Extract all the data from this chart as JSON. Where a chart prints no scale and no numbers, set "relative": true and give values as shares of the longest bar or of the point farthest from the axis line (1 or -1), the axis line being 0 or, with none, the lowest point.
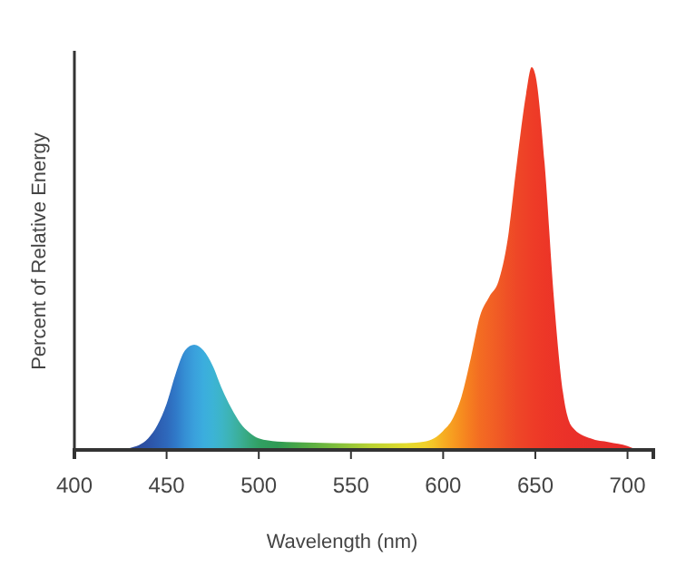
{
  "chart_data": {
    "type": "area",
    "xlabel": "Wavelength (nm)",
    "ylabel": "Percent of Relative Energy",
    "relative": true,
    "xlim": [
      400,
      714
    ],
    "xticks": [
      400,
      450,
      500,
      550,
      600,
      650,
      700
    ],
    "series": [
      {
        "x": [
          420,
          430,
          440,
          450,
          455,
          460,
          465,
          470,
          475,
          480,
          485,
          490,
          495,
          500,
          510,
          520,
          540,
          560,
          580,
          590,
          595,
          600,
          605,
          610,
          615,
          620,
          625,
          630,
          635,
          640,
          645,
          648,
          650,
          655,
          660,
          665,
          670,
          680,
          690,
          700,
          705
        ],
        "values": [
          0,
          0.005,
          0.03,
          0.12,
          0.2,
          0.26,
          0.275,
          0.26,
          0.22,
          0.16,
          0.11,
          0.07,
          0.045,
          0.03,
          0.022,
          0.02,
          0.018,
          0.017,
          0.018,
          0.022,
          0.03,
          0.05,
          0.08,
          0.14,
          0.24,
          0.35,
          0.4,
          0.44,
          0.55,
          0.75,
          0.93,
          1,
          0.98,
          0.75,
          0.4,
          0.15,
          0.06,
          0.03,
          0.02,
          0.01,
          0
        ],
        "colors": [
          "#2a3f8f",
          "#2b4796",
          "#2c52a6",
          "#2e68bb",
          "#3079c8",
          "#358fd4",
          "#3aa0dc",
          "#3badde",
          "#3cb3d6",
          "#3db5c6",
          "#3db3b0",
          "#3bae96",
          "#36a77a",
          "#31a064",
          "#2f9a55",
          "#45a548",
          "#79bc3c",
          "#b8d232",
          "#e2db2c",
          "#f1d12a",
          "#f4c327",
          "#f6ae22",
          "#f79d20",
          "#f68c1f",
          "#f57b20",
          "#f36c22",
          "#f26324",
          "#f05a25",
          "#ef5026",
          "#ee4727",
          "#ee4127",
          "#ee3d27",
          "#ee3b27",
          "#ed3727",
          "#ec3428",
          "#eb3229",
          "#ea3029",
          "#e92f2a",
          "#e82e2a",
          "#e72d2a",
          "#e72d2a"
        ]
      }
    ]
  }
}
